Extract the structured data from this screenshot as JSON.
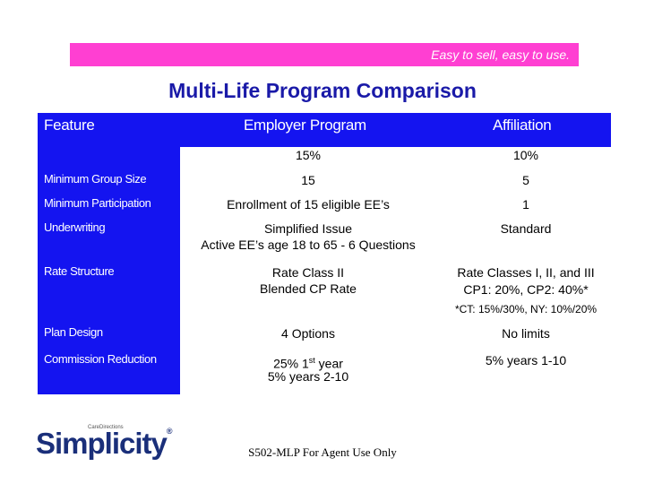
{
  "banner": {
    "text": "Easy to sell, easy to use."
  },
  "title": "Multi-Life Program Comparison",
  "table": {
    "headers": {
      "feature": "Feature",
      "employer": "Employer Program",
      "affiliation": "Affiliation"
    },
    "discount_row": {
      "employer": "15%",
      "affiliation": "10%"
    },
    "rows": [
      {
        "label": "Minimum  Group Size",
        "employer": [
          "15"
        ],
        "affiliation": [
          "5"
        ]
      },
      {
        "label": "Minimum Participation",
        "employer": [
          "Enrollment of 15 eligible EE’s"
        ],
        "affiliation": [
          "1"
        ]
      },
      {
        "label": "Underwriting",
        "employer": [
          "Simplified Issue",
          "Active EE’s age 18 to 65 - 6 Questions"
        ],
        "affiliation": [
          "Standard"
        ]
      },
      {
        "label": "Rate Structure",
        "employer": [
          "Rate Class II",
          "Blended CP Rate"
        ],
        "affiliation": [
          "Rate Classes I, II, and III",
          "CP1: 20%, CP2: 40%*",
          "*CT: 15%/30%, NY: 10%/20%"
        ]
      },
      {
        "label": "Plan Design",
        "employer": [
          "4 Options"
        ],
        "affiliation": [
          "No limits"
        ]
      },
      {
        "label": "Commission Reduction",
        "employer": [
          "25% 1",
          "st",
          " year",
          "5% years 2-10"
        ],
        "affiliation": [
          "5% years 1-10"
        ]
      }
    ]
  },
  "logo": {
    "sub": "CareDirections",
    "word": "Simplicity",
    "mark": "®"
  },
  "footer": "S502-MLP For Agent Use Only",
  "colors": {
    "banner": "#ff3fd2",
    "table_blue": "#1414f0",
    "title": "#1a1aa8"
  }
}
